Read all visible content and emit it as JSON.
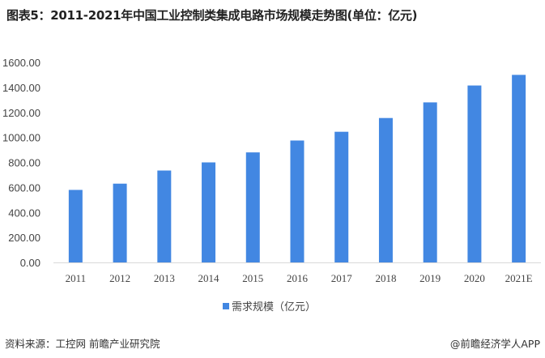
{
  "title": "图表5：2011-2021年中国工业控制类集成电路市场规模走势图(单位：亿元)",
  "source": "资料来源：工控网 前瞻产业研究院",
  "brand": "@前瞻经济学人APP",
  "colors": {
    "bar": "#4287e2",
    "axis": "#d9d9d9"
  },
  "chart_data": {
    "type": "bar",
    "title": "2011-2021年中国工业控制类集成电路市场规模走势图(单位：亿元)",
    "categories": [
      "2011",
      "2012",
      "2013",
      "2014",
      "2015",
      "2016",
      "2017",
      "2018",
      "2019",
      "2020",
      "2021E"
    ],
    "series": [
      {
        "name": "需求规模（亿元）",
        "values": [
          580,
          630,
          735,
          800,
          880,
          975,
          1045,
          1155,
          1280,
          1415,
          1500
        ]
      }
    ],
    "ylim": [
      0,
      1600
    ],
    "yticks": [
      "0.00",
      "200.00",
      "400.00",
      "600.00",
      "800.00",
      "1000.00",
      "1200.00",
      "1400.00",
      "1600.00"
    ],
    "grid": false,
    "legend": "bottom"
  }
}
